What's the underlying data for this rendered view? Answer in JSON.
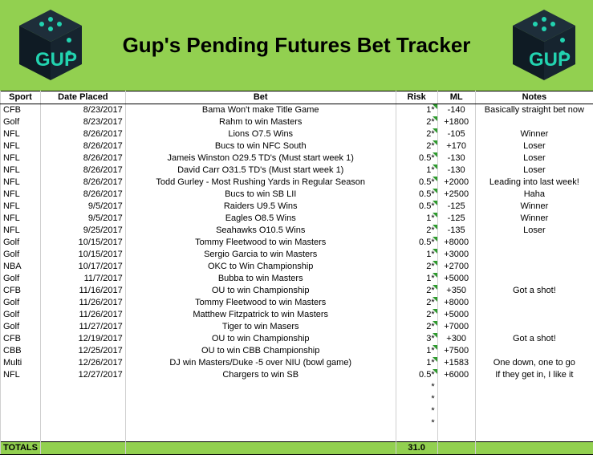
{
  "title": "Gup's Pending Futures Bet Tracker",
  "logo_text": "GUP",
  "colors": {
    "banner": "#92d050",
    "logo_bg": "#0f1b24",
    "logo_accent": "#22d3b0"
  },
  "headers": {
    "sport": "Sport",
    "date": "Date Placed",
    "bet": "Bet",
    "risk": "Risk",
    "ml": "ML",
    "notes": "Notes"
  },
  "rows": [
    {
      "sport": "CFB",
      "date": "8/23/2017",
      "bet": "Bama Won't make Title Game",
      "risk": "1",
      "ml": "-140",
      "notes": "Basically straight bet now"
    },
    {
      "sport": "Golf",
      "date": "8/23/2017",
      "bet": "Rahm to win Masters",
      "risk": "2",
      "ml": "+1800",
      "notes": ""
    },
    {
      "sport": "NFL",
      "date": "8/26/2017",
      "bet": "Lions O7.5 Wins",
      "risk": "2",
      "ml": "-105",
      "notes": "Winner"
    },
    {
      "sport": "NFL",
      "date": "8/26/2017",
      "bet": "Bucs to win NFC South",
      "risk": "2",
      "ml": "+170",
      "notes": "Loser"
    },
    {
      "sport": "NFL",
      "date": "8/26/2017",
      "bet": "Jameis Winston O29.5 TD's (Must start week 1)",
      "risk": "0.5",
      "ml": "-130",
      "notes": "Loser"
    },
    {
      "sport": "NFL",
      "date": "8/26/2017",
      "bet": "David Carr O31.5 TD's (Must start week 1)",
      "risk": "1",
      "ml": "-130",
      "notes": "Loser"
    },
    {
      "sport": "NFL",
      "date": "8/26/2017",
      "bet": "Todd Gurley - Most Rushing Yards in Regular Season",
      "risk": "0.5",
      "ml": "+2000",
      "notes": "Leading into last week!"
    },
    {
      "sport": "NFL",
      "date": "8/26/2017",
      "bet": "Bucs to win SB LII",
      "risk": "0.5",
      "ml": "+2500",
      "notes": "Haha"
    },
    {
      "sport": "NFL",
      "date": "9/5/2017",
      "bet": "Raiders U9.5 Wins",
      "risk": "0.5",
      "ml": "-125",
      "notes": "Winner"
    },
    {
      "sport": "NFL",
      "date": "9/5/2017",
      "bet": "Eagles O8.5 Wins",
      "risk": "1",
      "ml": "-125",
      "notes": "Winner"
    },
    {
      "sport": "NFL",
      "date": "9/25/2017",
      "bet": "Seahawks O10.5 Wins",
      "risk": "2",
      "ml": "-135",
      "notes": "Loser"
    },
    {
      "sport": "Golf",
      "date": "10/15/2017",
      "bet": "Tommy Fleetwood to win Masters",
      "risk": "0.5",
      "ml": "+8000",
      "notes": ""
    },
    {
      "sport": "Golf",
      "date": "10/15/2017",
      "bet": "Sergio Garcia to win Masters",
      "risk": "1",
      "ml": "+3000",
      "notes": ""
    },
    {
      "sport": "NBA",
      "date": "10/17/2017",
      "bet": "OKC to Win Championship",
      "risk": "2",
      "ml": "+2700",
      "notes": ""
    },
    {
      "sport": "Golf",
      "date": "11/7/2017",
      "bet": "Bubba to win Masters",
      "risk": "1",
      "ml": "+5000",
      "notes": ""
    },
    {
      "sport": "CFB",
      "date": "11/16/2017",
      "bet": "OU to win Championship",
      "risk": "2",
      "ml": "+350",
      "notes": "Got a shot!"
    },
    {
      "sport": "Golf",
      "date": "11/26/2017",
      "bet": "Tommy Fleetwood to win Masters",
      "risk": "2",
      "ml": "+8000",
      "notes": ""
    },
    {
      "sport": "Golf",
      "date": "11/26/2017",
      "bet": "Matthew Fitzpatrick to win Masters",
      "risk": "2",
      "ml": "+5000",
      "notes": ""
    },
    {
      "sport": "Golf",
      "date": "11/27/2017",
      "bet": "Tiger to win Masers",
      "risk": "2",
      "ml": "+7000",
      "notes": ""
    },
    {
      "sport": "CFB",
      "date": "12/19/2017",
      "bet": "OU to win Championship",
      "risk": "3",
      "ml": "+300",
      "notes": "Got a shot!"
    },
    {
      "sport": "CBB",
      "date": "12/25/2017",
      "bet": "OU to win CBB Championship",
      "risk": "1",
      "ml": "+7500",
      "notes": ""
    },
    {
      "sport": "Multi",
      "date": "12/26/2017",
      "bet": "DJ win Masters/Duke -5 over NIU (bowl game)",
      "risk": "1",
      "ml": "+1583",
      "notes": "One down, one to go"
    },
    {
      "sport": "NFL",
      "date": "12/27/2017",
      "bet": "Chargers to win SB",
      "risk": "0.5",
      "ml": "+6000",
      "notes": "If they get in, I like it"
    }
  ],
  "star": "*",
  "totals": {
    "label": "TOTALS",
    "risk": "31.0"
  }
}
